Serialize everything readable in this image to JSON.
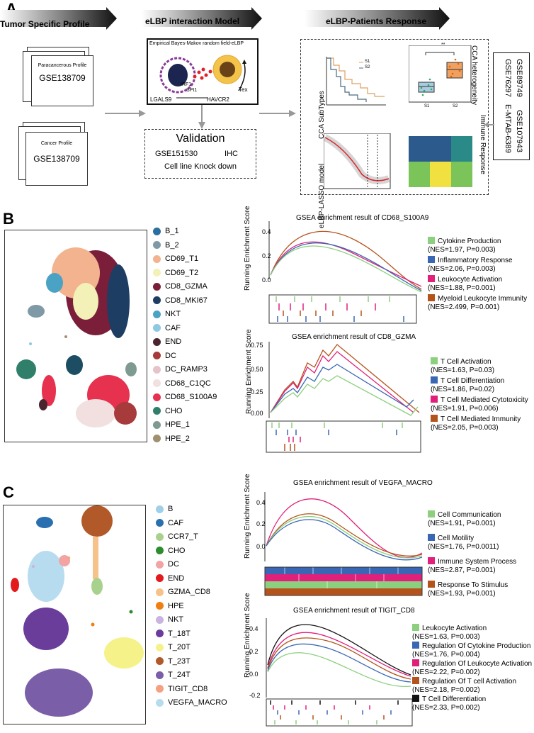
{
  "panels": {
    "a": "A",
    "b": "B",
    "c": "C"
  },
  "panelA": {
    "arrow1": "Tumor Specific Profile",
    "arrow2": "eLBP interaction Model",
    "arrow3": "eLBP-Patients Response",
    "doc1_title": "Paracancerous Profile",
    "doc1_id": "GSE138709",
    "doc2_title": "Cancer Profile",
    "doc2_id": "GSE138709",
    "model_title": "Empirical Bayes-Makov random field-eLBP",
    "irf1": "IRF1",
    "spi1": "SPI1",
    "tex": "Tex",
    "ligand": "LGALS9",
    "receptor": "HAVCR2",
    "validation_title": "Validation",
    "validation_line1a": "GSE151530",
    "validation_line1b": "IHC",
    "validation_line2": "Cell line Knock down",
    "cca_subtypes": "CCA SubTypes",
    "elbp_lasso": "eLBP-LASSO model",
    "cca_heterogeneity": "CCA heterogeneity",
    "immune_response": "Immune Response",
    "km_s1": "S1",
    "km_s2": "S2",
    "box_s1": "S1",
    "box_s2": "S2",
    "box_sig": "**",
    "datasets": [
      "GSE89749",
      "GSE107943",
      "GSE76297",
      "E-MTAB-6389"
    ]
  },
  "panelB": {
    "clusters": [
      {
        "name": "B_1",
        "color": "#2a6fa0"
      },
      {
        "name": "B_2",
        "color": "#7f9aa6"
      },
      {
        "name": "CD69_T1",
        "color": "#f2b38e"
      },
      {
        "name": "CD69_T2",
        "color": "#f3f0b8"
      },
      {
        "name": "CD8_GZMA",
        "color": "#7b1e3a"
      },
      {
        "name": "CD8_MKI67",
        "color": "#1d3d63"
      },
      {
        "name": "NKT",
        "color": "#4aa3c4"
      },
      {
        "name": "CAF",
        "color": "#8ec8e2"
      },
      {
        "name": "END",
        "color": "#4a2530"
      },
      {
        "name": "DC",
        "color": "#a73a3a"
      },
      {
        "name": "DC_RAMP3",
        "color": "#e6c3c8"
      },
      {
        "name": "CD68_C1QC",
        "color": "#f2e0e0"
      },
      {
        "name": "CD68_S100A9",
        "color": "#e6314f"
      },
      {
        "name": "CHO",
        "color": "#2f7f6a"
      },
      {
        "name": "HPE_1",
        "color": "#7f9a90"
      },
      {
        "name": "HPE_2",
        "color": "#a09070"
      }
    ],
    "gsea1": {
      "title": "GSEA enrichment result of  CD68_S100A9",
      "ylabel": "Running Enrichment Score",
      "yticks": [
        "0.4",
        "0.2",
        "0.0"
      ],
      "items": [
        {
          "label": "Cytokine Production",
          "stat": "(NES=1.97, P=0.003)",
          "color": "#8ccf7e"
        },
        {
          "label": "Inflammatory Response",
          "stat": "(NES=2.06, P=0.003)",
          "color": "#3a67b4"
        },
        {
          "label": "Leukocyte Activation",
          "stat": "(NES=1.88, P=0.001)",
          "color": "#e0207a"
        },
        {
          "label": "Myeloid Leukocyte Immunity",
          "stat": "(NES=2.499, P=0.001)",
          "color": "#b5531c"
        }
      ]
    },
    "gsea2": {
      "title": "GSEA enrichment result of  CD8_GZMA",
      "ylabel": "Running Enrichment Score",
      "yticks": [
        "0.75",
        "0.50",
        "0.25",
        "0.00"
      ],
      "items": [
        {
          "label": "T Cell Activation",
          "stat": "(NES=1.63, P=0.03)",
          "color": "#8ccf7e"
        },
        {
          "label": "T Cell Differentiation",
          "stat": "(NES=1.86, P=0.02)",
          "color": "#3a67b4"
        },
        {
          "label": "T Cell Mediated Cytotoxicity",
          "stat": "(NES=1.91, P=0.006)",
          "color": "#e0207a"
        },
        {
          "label": "T Cell Mediated Immunity",
          "stat": "(NES=2.05, P=0.003)",
          "color": "#b5531c"
        }
      ]
    }
  },
  "panelC": {
    "clusters": [
      {
        "name": "B",
        "color": "#9fd0e8"
      },
      {
        "name": "CAF",
        "color": "#2a6fb0"
      },
      {
        "name": "CCR7_T",
        "color": "#a9d18e"
      },
      {
        "name": "CHO",
        "color": "#2e8b2e"
      },
      {
        "name": "DC",
        "color": "#f2a3a3"
      },
      {
        "name": "END",
        "color": "#e31a1c"
      },
      {
        "name": "GZMA_CD8",
        "color": "#f7c28a"
      },
      {
        "name": "HPE",
        "color": "#f07f12"
      },
      {
        "name": "NKT",
        "color": "#c9b3e0"
      },
      {
        "name": "T_18T",
        "color": "#6a3d9a"
      },
      {
        "name": "T_20T",
        "color": "#f5f28a"
      },
      {
        "name": "T_23T",
        "color": "#b15928"
      },
      {
        "name": "T_24T",
        "color": "#7a5fa8"
      },
      {
        "name": "TIGIT_CD8",
        "color": "#f5a080"
      },
      {
        "name": "VEGFA_MACRO",
        "color": "#b8dcef"
      }
    ],
    "gsea1": {
      "title": "GSEA enrichment result of  VEGFA_MACRO",
      "ylabel": "Running Enrichment Score",
      "yticks": [
        "0.4",
        "0.2",
        "0.0"
      ],
      "items": [
        {
          "label": "Cell Communication",
          "stat": "(NES=1.91, P=0.001)",
          "color": "#8ccf7e"
        },
        {
          "label": "Cell Motility",
          "stat": "(NES=1.76, P=0.0011)",
          "color": "#3a67b4"
        },
        {
          "label": "Immune System Process",
          "stat": "(NES=2.87, P=0.001)",
          "color": "#e0207a"
        },
        {
          "label": "Response To Stimulus",
          "stat": "(NES=1.93, P=0.001)",
          "color": "#b5531c"
        }
      ]
    },
    "gsea2": {
      "title": "GSEA enrichment result of  TIGIT_CD8",
      "ylabel": "Running Enrichment Score",
      "yticks": [
        "0.4",
        "0.2",
        "0.0",
        "-0.2"
      ],
      "items": [
        {
          "label": "Leukocyte Activation",
          "stat": "(NES=1.63, P=0.003)",
          "color": "#8ccf7e"
        },
        {
          "label": "Regulation Of Cytokine Production",
          "stat": "(NES=1.76, P=0.004)",
          "color": "#3a67b4"
        },
        {
          "label": "Regulation Of Leukocyte Activation",
          "stat": "(NES=2.22, P=0.002)",
          "color": "#e0207a"
        },
        {
          "label": "Regulation Of T cell Activation",
          "stat": "(NES=2.18, P=0.002)",
          "color": "#b5531c"
        },
        {
          "label": "T Cell Differentiation",
          "stat": "(NES=2.33, P=0.002)",
          "color": "#111111"
        }
      ]
    }
  }
}
